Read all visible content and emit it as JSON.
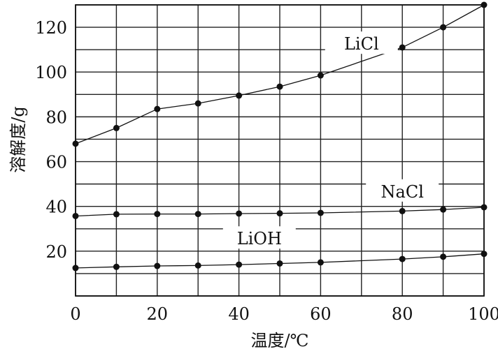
{
  "chart_data": {
    "type": "line",
    "xlabel": "温度/℃",
    "ylabel": "溶解度/g",
    "xlim": [
      0,
      100
    ],
    "ylim": [
      0,
      130
    ],
    "grid": true,
    "x_ticks": [
      "0",
      "20",
      "40",
      "60",
      "80",
      "100"
    ],
    "y_ticks": [
      "20",
      "40",
      "60",
      "80",
      "100",
      "120"
    ],
    "x": [
      0,
      10,
      20,
      30,
      40,
      50,
      60,
      80,
      90,
      100
    ],
    "series": [
      {
        "name": "LiCl",
        "values": [
          68,
          75,
          83.5,
          86,
          89.5,
          93.5,
          98.5,
          111,
          120,
          130
        ]
      },
      {
        "name": "NaCl",
        "values": [
          35.7,
          36.5,
          36.6,
          36.6,
          36.8,
          36.9,
          37.1,
          37.9,
          38.6,
          39.6
        ]
      },
      {
        "name": "LiOH",
        "values": [
          12.5,
          13,
          13.4,
          13.6,
          14,
          14.5,
          15,
          16.5,
          17.5,
          18.8
        ]
      }
    ]
  }
}
